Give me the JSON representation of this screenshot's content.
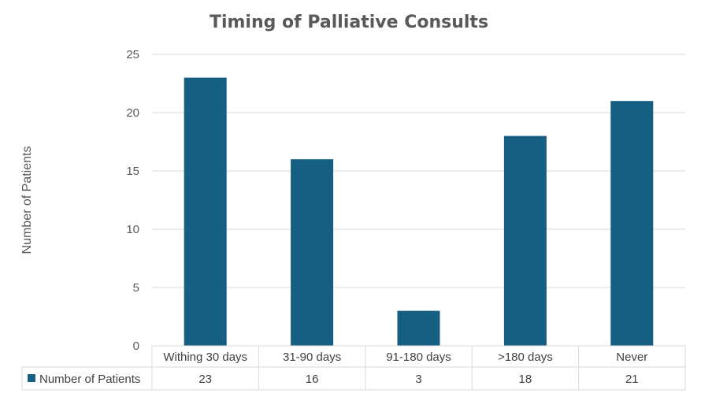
{
  "chart_data": {
    "type": "bar",
    "title": "Timing of Palliative Consults",
    "ylabel": "Number of Patients",
    "xlabel": "",
    "categories": [
      "Withing 30 days",
      "31-90 days",
      "91-180 days",
      ">180 days",
      "Never"
    ],
    "series": [
      {
        "name": "Number of Patients",
        "values": [
          23,
          16,
          3,
          18,
          21
        ],
        "color": "#156082"
      }
    ],
    "ylim": [
      0,
      25
    ],
    "yticks": [
      0,
      5,
      10,
      15,
      20,
      25
    ],
    "grid": true,
    "legend": "data-table"
  }
}
